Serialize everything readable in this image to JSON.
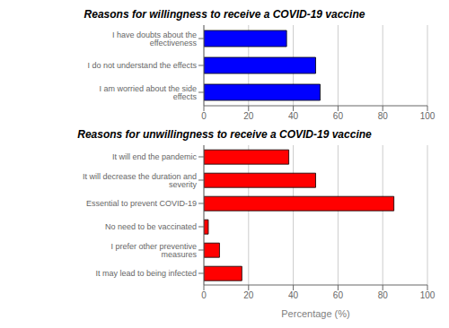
{
  "chart_data": [
    {
      "type": "bar",
      "orientation": "horizontal",
      "title": "Reasons for willingness to receive a COVID-19 vaccine",
      "categories": [
        "I am worried about the side effects",
        "I do not understand the effects",
        "I have doubts about the effectiveness"
      ],
      "values": [
        52,
        50,
        37
      ],
      "color": "#0000FF",
      "xlim": [
        0,
        100
      ],
      "xticks": [
        0,
        20,
        40,
        60,
        80,
        100
      ],
      "grid": true
    },
    {
      "type": "bar",
      "orientation": "horizontal",
      "title": "Reasons for unwillingness to receive a COVID-19 vaccine",
      "categories": [
        "It may lead to being infected",
        "I prefer other preventive measures",
        "No need to be vaccinated",
        "Essential to prevent COVID-19",
        "It will decrease the duration and severity",
        "It will end the pandemic"
      ],
      "values": [
        17,
        7,
        2,
        85,
        50,
        38
      ],
      "color": "#FF0000",
      "xlabel": "Percentage (%)",
      "xlim": [
        0,
        100
      ],
      "xticks": [
        0,
        20,
        40,
        60,
        80,
        100
      ],
      "grid": true
    }
  ]
}
